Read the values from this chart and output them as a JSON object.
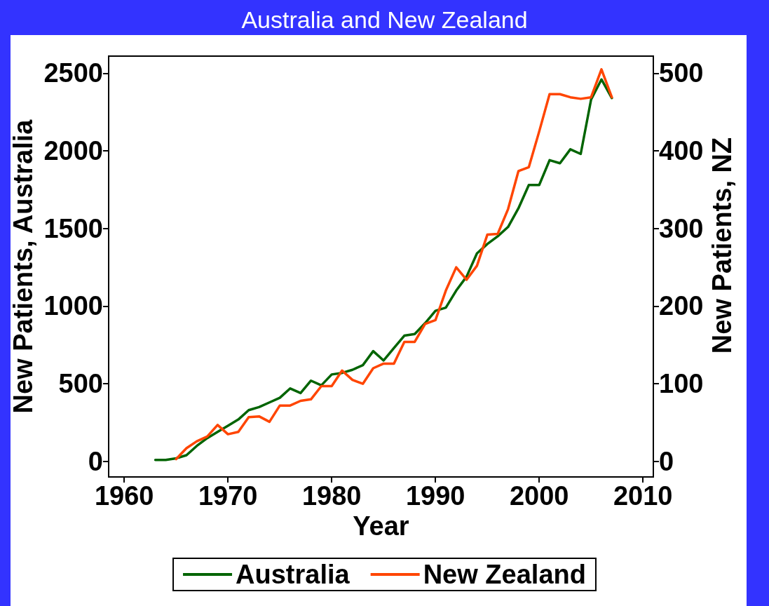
{
  "chart_data": {
    "type": "line",
    "title": "Australia and New Zealand",
    "xlabel": "Year",
    "ylabel": "New Patients, Australia",
    "y2label": "New Patients, NZ",
    "x": [
      1963,
      1964,
      1965,
      1966,
      1967,
      1968,
      1969,
      1970,
      1971,
      1972,
      1973,
      1974,
      1975,
      1976,
      1977,
      1978,
      1979,
      1980,
      1981,
      1982,
      1983,
      1984,
      1985,
      1986,
      1987,
      1988,
      1989,
      1990,
      1991,
      1992,
      1993,
      1994,
      1995,
      1996,
      1997,
      1998,
      1999,
      2000,
      2001,
      2002,
      2003,
      2004,
      2005,
      2006,
      2007
    ],
    "series": [
      {
        "name": "Australia",
        "color": "#006400",
        "values": [
          10,
          10,
          20,
          40,
          100,
          150,
          190,
          230,
          270,
          330,
          350,
          380,
          410,
          470,
          440,
          520,
          490,
          560,
          570,
          590,
          620,
          710,
          650,
          730,
          810,
          820,
          890,
          970,
          990,
          1100,
          1190,
          1340,
          1400,
          1450,
          1510,
          1630,
          1780,
          1780,
          1940,
          1920,
          2010,
          1980,
          2330,
          2460,
          2340
        ]
      },
      {
        "name": "New Zealand",
        "color": "#ff4500",
        "axis": "y2",
        "x": [
          1965,
          1966,
          1967,
          1968,
          1969,
          1970,
          1971,
          1972,
          1973,
          1974,
          1975,
          1976,
          1977,
          1978,
          1979,
          1980,
          1981,
          1982,
          1983,
          1984,
          1985,
          1986,
          1987,
          1988,
          1989,
          1990,
          1991,
          1992,
          1993,
          1994,
          1995,
          1996,
          1997,
          1998,
          1999,
          2000,
          2001,
          2002,
          2003,
          2004,
          2005,
          2006,
          2007
        ],
        "values": [
          3,
          17,
          26,
          32,
          47,
          35,
          38,
          57,
          58,
          51,
          72,
          72,
          78,
          80,
          97,
          97,
          117,
          105,
          100,
          120,
          126,
          126,
          154,
          154,
          177,
          182,
          220,
          250,
          234,
          252,
          292,
          293,
          325,
          374,
          379,
          425,
          473,
          473,
          469,
          467,
          469,
          505,
          469
        ]
      }
    ],
    "xlim": [
      1958.5,
      2011
    ],
    "xticks": [
      1960,
      1970,
      1980,
      1990,
      2000,
      2010
    ],
    "ylim": [
      -100,
      2610
    ],
    "yticks": [
      0,
      500,
      1000,
      1500,
      2000,
      2500
    ],
    "y2lim": [
      -20,
      522
    ],
    "y2ticks": [
      0,
      100,
      200,
      300,
      400,
      500
    ],
    "grid": false,
    "legend": "bottom",
    "marker": "none",
    "line_style": "solid"
  }
}
